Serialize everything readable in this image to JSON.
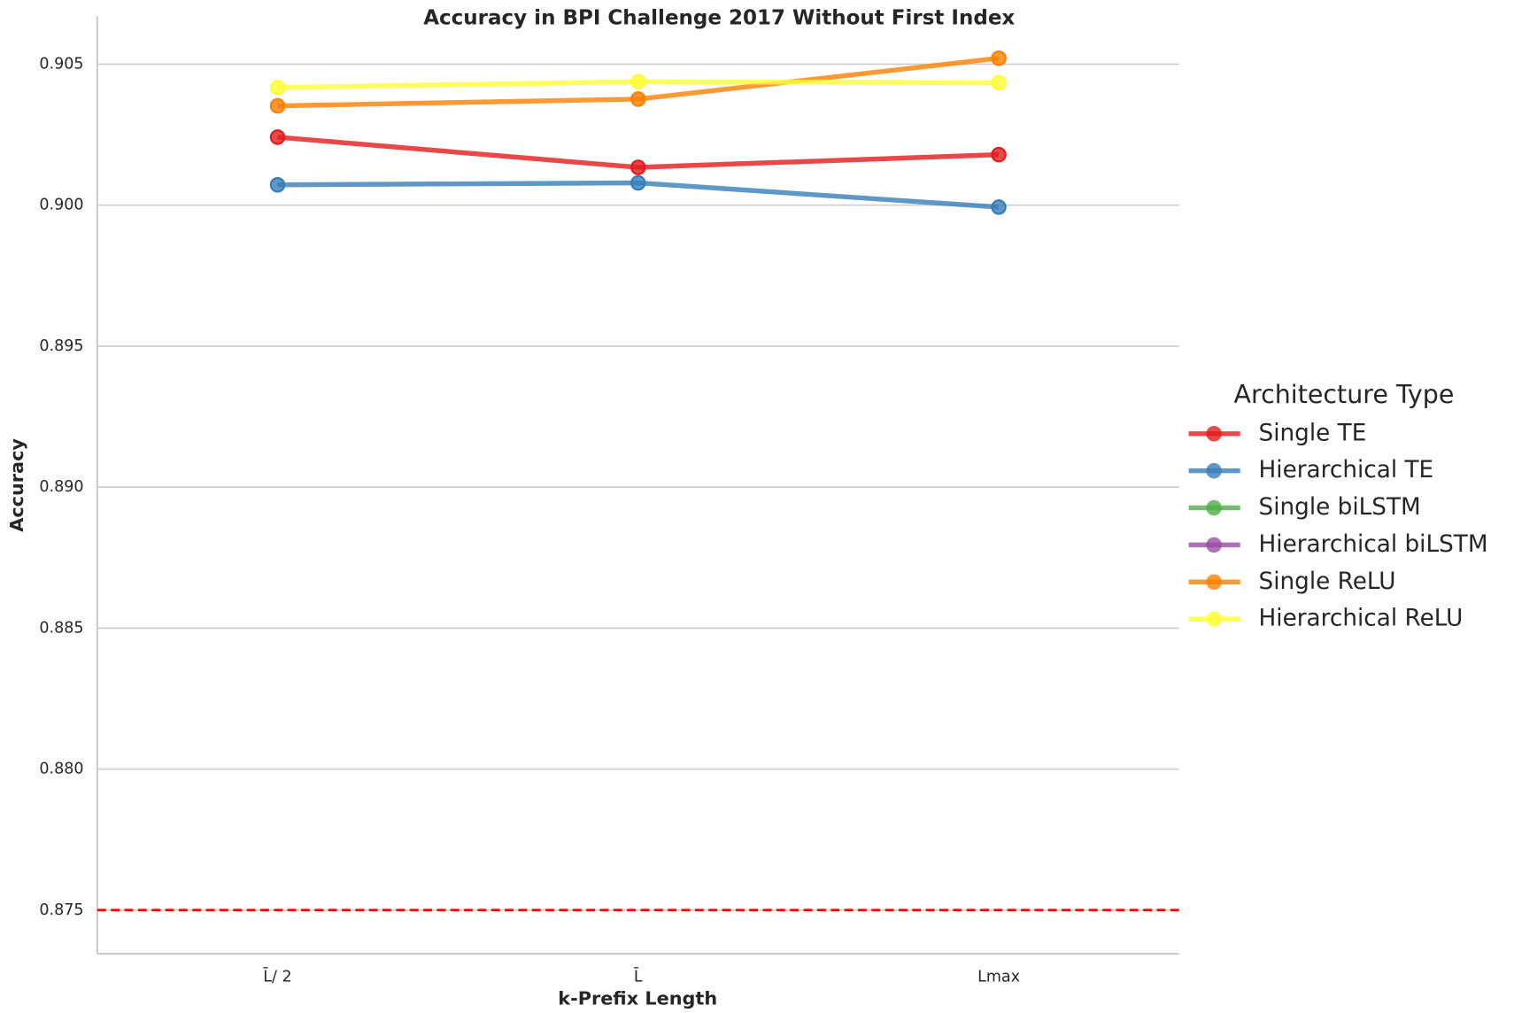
{
  "chart_data": {
    "type": "line",
    "title": "Accuracy in BPI Challenge 2017 Without First Index",
    "x_label": "k-Prefix Length",
    "y_label": "Accuracy",
    "categories": [
      "L̄/ 2",
      "L̄",
      "Lmax"
    ],
    "series": [
      {
        "name": "Single TE",
        "color": "#e41a1c",
        "values": [
          0.90241,
          0.90134,
          0.90179
        ]
      },
      {
        "name": "Hierarchical TE",
        "color": "#377eb8",
        "values": [
          0.90072,
          0.90079,
          0.89993
        ]
      },
      {
        "name": "Single biLSTM",
        "color": "#4daf4a",
        "values": [
          null,
          null,
          null
        ]
      },
      {
        "name": "Hierarchical biLSTM",
        "color": "#984ea3",
        "values": [
          null,
          null,
          null
        ]
      },
      {
        "name": "Single ReLU",
        "color": "#ff7f00",
        "values": [
          0.90352,
          0.90376,
          0.90521
        ]
      },
      {
        "name": "Hierarchical ReLU",
        "color": "#ffff33",
        "values": [
          0.90417,
          0.90438,
          0.90434
        ]
      }
    ],
    "legend_title": "Architecture Type",
    "legend_position": "right",
    "ylim": [
      0.87345,
      0.90669
    ],
    "yticks": [
      0.875,
      {
        "value": 0.88,
        "label": "0.880"
      },
      0.885,
      {
        "value": 0.89,
        "label": "0.890"
      },
      0.895,
      {
        "value": 0.9,
        "label": "0.900"
      },
      0.905
    ],
    "grid": true,
    "hline": {
      "value": 0.875,
      "color": "#ff0000",
      "style": "dashed"
    }
  }
}
